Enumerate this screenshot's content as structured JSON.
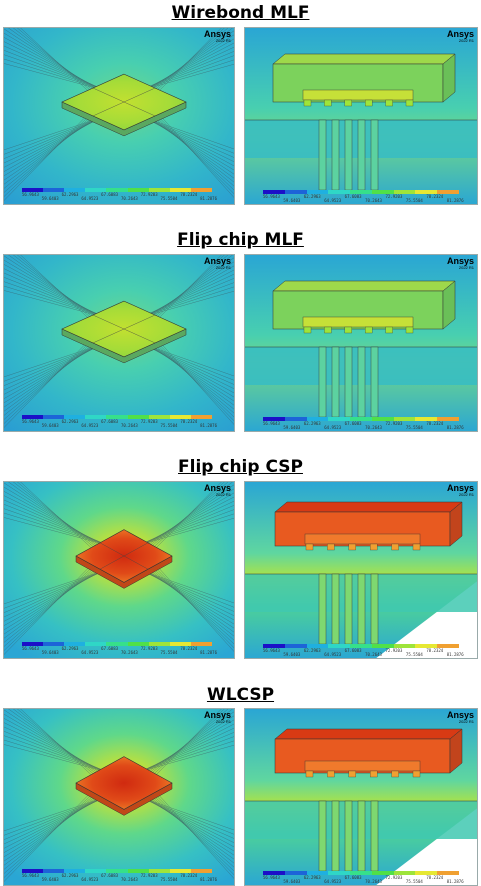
{
  "packages": [
    {
      "title": "Wirebond MLF",
      "hotspot": "green"
    },
    {
      "title": "Flip chip MLF",
      "hotspot": "green"
    },
    {
      "title": "Flip chip CSP",
      "hotspot": "red"
    },
    {
      "title": "WLCSP",
      "hotspot": "red"
    }
  ],
  "logo": {
    "brand": "Ansys",
    "version": "2022 R1"
  },
  "legend": {
    "colors": [
      "#1b10c8",
      "#1d64d8",
      "#1fb0e0",
      "#2fd7c6",
      "#36e08a",
      "#50e048",
      "#9ee43a",
      "#e6e833",
      "#f0a031"
    ],
    "upper_values": [
      "56.9643",
      "62.2963",
      "67.6083",
      "72.9203",
      "78.2324"
    ],
    "lower_values": [
      "59.6403",
      "64.9523",
      "70.2643",
      "75.5504",
      "81.2876"
    ]
  }
}
